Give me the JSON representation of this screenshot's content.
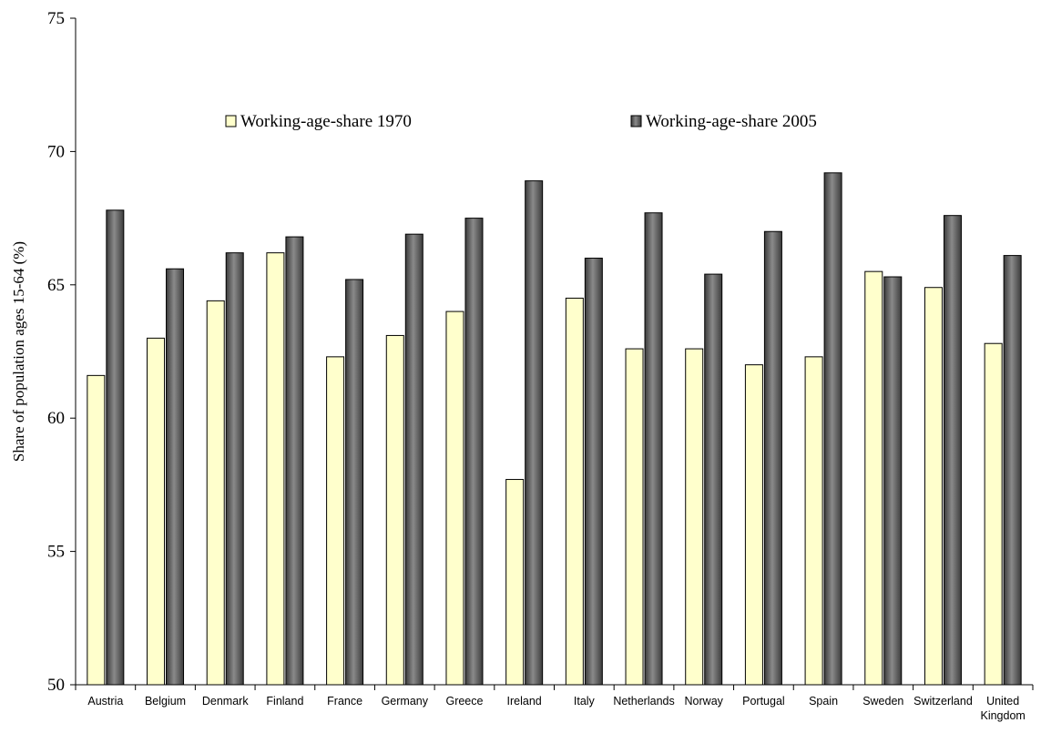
{
  "chart_data": {
    "type": "bar",
    "categories": [
      "Austria",
      "Belgium",
      "Denmark",
      "Finland",
      "France",
      "Germany",
      "Greece",
      "Ireland",
      "Italy",
      "Netherlands",
      "Norway",
      "Portugal",
      "Spain",
      "Sweden",
      "Switzerland",
      "United Kingdom"
    ],
    "series": [
      {
        "name": "Working-age-share 1970",
        "color": "#ffffcc",
        "values": [
          61.6,
          63.0,
          64.4,
          66.2,
          62.3,
          63.1,
          64.0,
          57.7,
          64.5,
          62.6,
          62.6,
          62.0,
          62.3,
          65.5,
          64.9,
          62.8
        ]
      },
      {
        "name": "Working-age-share 2005",
        "color": "#6e6e6e",
        "values": [
          67.8,
          65.6,
          66.2,
          66.8,
          65.2,
          66.9,
          67.5,
          68.9,
          66.0,
          67.7,
          65.4,
          67.0,
          69.2,
          65.3,
          67.6,
          66.1
        ]
      }
    ],
    "title": "",
    "xlabel": "",
    "ylabel": "Share of population ages 15-64 (%)",
    "ylim": [
      50,
      75
    ],
    "yticks": [
      50,
      55,
      60,
      65,
      70,
      75
    ],
    "grid": false,
    "legend": "top-center"
  }
}
